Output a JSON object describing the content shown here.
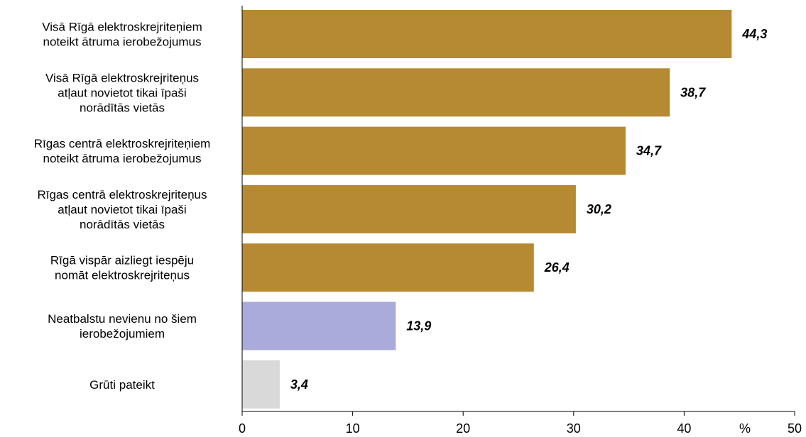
{
  "chart_data": {
    "type": "bar",
    "orientation": "horizontal",
    "categories": [
      [
        "Visā Rīgā elektroskrejriteņiem",
        "noteikt ātruma ierobežojumus"
      ],
      [
        "Visā Rīgā elektroskrejriteņus",
        "atļaut novietot tikai īpaši",
        "norādītās vietās"
      ],
      [
        "Rīgas centrā elektroskrejriteņiem",
        "noteikt ātruma ierobežojumus"
      ],
      [
        "Rīgas centrā elektroskrejriteņus",
        "atļaut novietot tikai īpaši",
        "norādītās vietās"
      ],
      [
        "Rīgā vispār aizliegt iespēju",
        "nomāt elektroskrejriteņus"
      ],
      [
        "Neatbalstu nevienu no šiem",
        "ierobežojumiem"
      ],
      [
        "Grūti pateikt"
      ]
    ],
    "values": [
      44.3,
      38.7,
      34.7,
      30.2,
      26.4,
      13.9,
      3.4
    ],
    "value_labels": [
      "44,3",
      "38,7",
      "34,7",
      "30,2",
      "26,4",
      "13,9",
      "3,4"
    ],
    "colors": [
      "#b68933",
      "#b68933",
      "#b68933",
      "#b68933",
      "#b68933",
      "#aaaadb",
      "#d9d9d9"
    ],
    "xlim": [
      0,
      50
    ],
    "xticks": [
      0,
      10,
      20,
      30,
      40,
      50
    ],
    "xtick_labels": [
      "0",
      "10",
      "20",
      "30",
      "40",
      "50"
    ],
    "unit_label": "%",
    "grid": false
  }
}
